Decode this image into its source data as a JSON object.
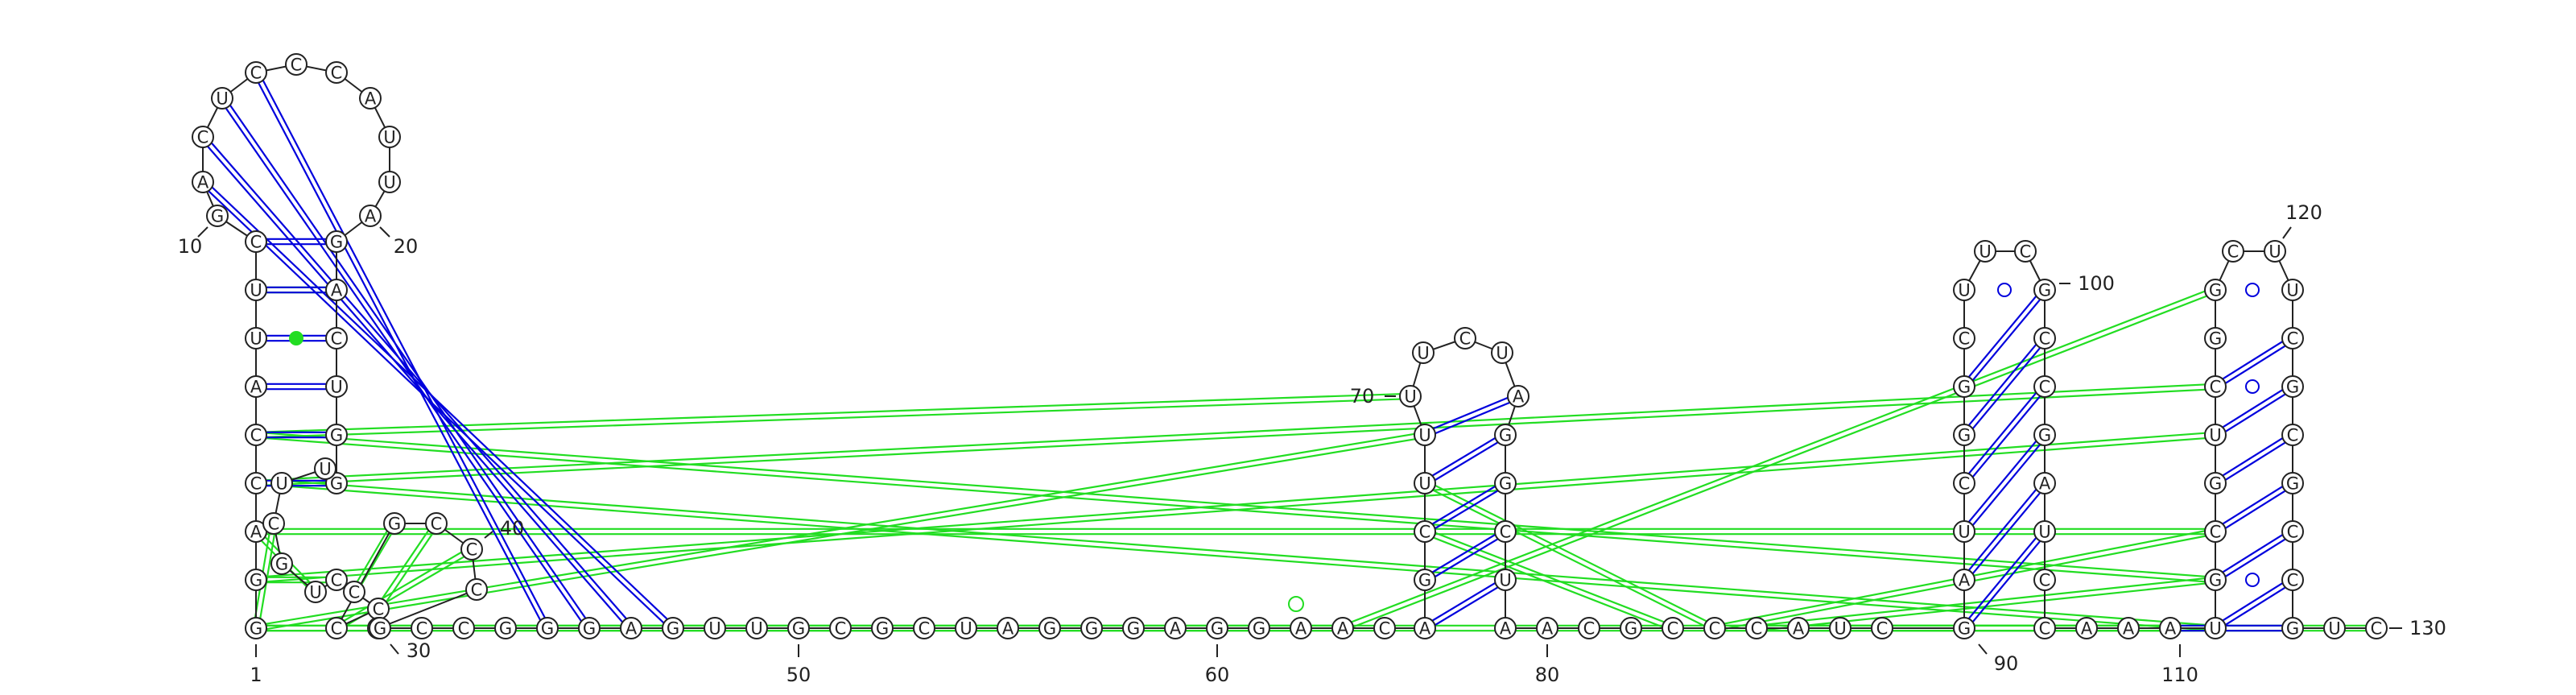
{
  "diagram": {
    "colors": {
      "backbone": "#222222",
      "canonical_pair": "#0000dd",
      "noncanonical_pair": "#22dd22",
      "node_fill": "#ffffff",
      "node_stroke": "#222222"
    },
    "nucleotides": [
      {
        "i": 1,
        "base": "G"
      },
      {
        "i": 2,
        "base": "G"
      },
      {
        "i": 3,
        "base": "A"
      },
      {
        "i": 4,
        "base": "C"
      },
      {
        "i": 5,
        "base": "C"
      },
      {
        "i": 6,
        "base": "A"
      },
      {
        "i": 7,
        "base": "U"
      },
      {
        "i": 8,
        "base": "U"
      },
      {
        "i": 9,
        "base": "C"
      },
      {
        "i": 10,
        "base": "G"
      },
      {
        "i": 11,
        "base": "A"
      },
      {
        "i": 12,
        "base": "C"
      },
      {
        "i": 13,
        "base": "U"
      },
      {
        "i": 14,
        "base": "C"
      },
      {
        "i": 15,
        "base": "C"
      },
      {
        "i": 16,
        "base": "C"
      },
      {
        "i": 17,
        "base": "A"
      },
      {
        "i": 18,
        "base": "U"
      },
      {
        "i": 19,
        "base": "U"
      },
      {
        "i": 20,
        "base": "A"
      },
      {
        "i": 21,
        "base": "G"
      },
      {
        "i": 22,
        "base": "A"
      },
      {
        "i": 23,
        "base": "C"
      },
      {
        "i": 24,
        "base": "U"
      },
      {
        "i": 25,
        "base": "G"
      },
      {
        "i": 26,
        "base": "G"
      },
      {
        "i": 27,
        "base": "U"
      },
      {
        "i": 28,
        "base": "U"
      },
      {
        "i": 29,
        "base": "C"
      },
      {
        "i": 30,
        "base": "G"
      },
      {
        "i": 31,
        "base": "U"
      },
      {
        "i": 32,
        "base": "C"
      },
      {
        "i": 33,
        "base": "C"
      },
      {
        "i": 34,
        "base": "C"
      },
      {
        "i": 35,
        "base": "C"
      },
      {
        "i": 36,
        "base": "G"
      },
      {
        "i": 37,
        "base": "C"
      },
      {
        "i": 38,
        "base": "C"
      },
      {
        "i": 39,
        "base": "C"
      },
      {
        "i": 40,
        "base": "G"
      },
      {
        "i": 41,
        "base": "G"
      },
      {
        "i": 42,
        "base": "C"
      },
      {
        "i": 43,
        "base": "C"
      },
      {
        "i": 44,
        "base": "G"
      },
      {
        "i": 45,
        "base": "G"
      },
      {
        "i": 46,
        "base": "G"
      },
      {
        "i": 47,
        "base": "A"
      },
      {
        "i": 48,
        "base": "G"
      },
      {
        "i": 49,
        "base": "U"
      },
      {
        "i": 50,
        "base": "U"
      },
      {
        "i": 51,
        "base": "G"
      },
      {
        "i": 52,
        "base": "C"
      },
      {
        "i": 53,
        "base": "G"
      },
      {
        "i": 54,
        "base": "C"
      },
      {
        "i": 55,
        "base": "U"
      },
      {
        "i": 56,
        "base": "A"
      },
      {
        "i": 57,
        "base": "G"
      },
      {
        "i": 58,
        "base": "G"
      },
      {
        "i": 59,
        "base": "G"
      },
      {
        "i": 60,
        "base": "A"
      },
      {
        "i": 61,
        "base": "G"
      },
      {
        "i": 62,
        "base": "G"
      },
      {
        "i": 63,
        "base": "A"
      },
      {
        "i": 64,
        "base": "A"
      },
      {
        "i": 65,
        "base": "C"
      },
      {
        "i": 66,
        "base": "A"
      },
      {
        "i": 67,
        "base": "G"
      },
      {
        "i": 68,
        "base": "C"
      },
      {
        "i": 69,
        "base": "U"
      },
      {
        "i": 70,
        "base": "U"
      },
      {
        "i": 71,
        "base": "U"
      },
      {
        "i": 72,
        "base": "U"
      },
      {
        "i": 73,
        "base": "C"
      },
      {
        "i": 74,
        "base": "U"
      },
      {
        "i": 75,
        "base": "A"
      },
      {
        "i": 76,
        "base": "G"
      },
      {
        "i": 77,
        "base": "G"
      },
      {
        "i": 78,
        "base": "C"
      },
      {
        "i": 79,
        "base": "U"
      },
      {
        "i": 80,
        "base": "A"
      },
      {
        "i": 81,
        "base": "A"
      },
      {
        "i": 82,
        "base": "C"
      },
      {
        "i": 83,
        "base": "G"
      },
      {
        "i": 84,
        "base": "C"
      },
      {
        "i": 85,
        "base": "C"
      },
      {
        "i": 86,
        "base": "C"
      },
      {
        "i": 87,
        "base": "A"
      },
      {
        "i": 88,
        "base": "U"
      },
      {
        "i": 89,
        "base": "C"
      },
      {
        "i": 90,
        "base": "G"
      },
      {
        "i": 91,
        "base": "A"
      },
      {
        "i": 92,
        "base": "U"
      },
      {
        "i": 93,
        "base": "C"
      },
      {
        "i": 94,
        "base": "G"
      },
      {
        "i": 95,
        "base": "G"
      },
      {
        "i": 96,
        "base": "C"
      },
      {
        "i": 97,
        "base": "U"
      },
      {
        "i": 98,
        "base": "U"
      },
      {
        "i": 99,
        "base": "C"
      },
      {
        "i": 100,
        "base": "G"
      },
      {
        "i": 101,
        "base": "C"
      },
      {
        "i": 102,
        "base": "C"
      },
      {
        "i": 103,
        "base": "G"
      },
      {
        "i": 104,
        "base": "A"
      },
      {
        "i": 105,
        "base": "U"
      },
      {
        "i": 106,
        "base": "C"
      },
      {
        "i": 107,
        "base": "C"
      },
      {
        "i": 108,
        "base": "A"
      },
      {
        "i": 109,
        "base": "A"
      },
      {
        "i": 110,
        "base": "A"
      },
      {
        "i": 111,
        "base": "U"
      },
      {
        "i": 112,
        "base": "G"
      },
      {
        "i": 113,
        "base": "C"
      },
      {
        "i": 114,
        "base": "G"
      },
      {
        "i": 115,
        "base": "U"
      },
      {
        "i": 116,
        "base": "C"
      },
      {
        "i": 117,
        "base": "G"
      },
      {
        "i": 118,
        "base": "G"
      },
      {
        "i": 119,
        "base": "C"
      },
      {
        "i": 120,
        "base": "U"
      },
      {
        "i": 121,
        "base": "U"
      },
      {
        "i": 122,
        "base": "C"
      },
      {
        "i": 123,
        "base": "G"
      },
      {
        "i": 124,
        "base": "C"
      },
      {
        "i": 125,
        "base": "G"
      },
      {
        "i": 126,
        "base": "C"
      },
      {
        "i": 127,
        "base": "C"
      },
      {
        "i": 128,
        "base": "G"
      },
      {
        "i": 129,
        "base": "U"
      },
      {
        "i": 130,
        "base": "C"
      }
    ],
    "position_labels": [
      {
        "i": 1,
        "text": "1"
      },
      {
        "i": 10,
        "text": "10"
      },
      {
        "i": 20,
        "text": "20"
      },
      {
        "i": 30,
        "text": "30"
      },
      {
        "i": 40,
        "text": "40"
      },
      {
        "i": 50,
        "text": "50"
      },
      {
        "i": 60,
        "text": "60"
      },
      {
        "i": 70,
        "text": "70"
      },
      {
        "i": 80,
        "text": "80"
      },
      {
        "i": 90,
        "text": "90"
      },
      {
        "i": 100,
        "text": "100"
      },
      {
        "i": 110,
        "text": "110"
      },
      {
        "i": 120,
        "text": "120"
      },
      {
        "i": 130,
        "text": "130"
      }
    ],
    "canonical_pairs": [
      [
        4,
        26
      ],
      [
        5,
        25
      ],
      [
        6,
        24
      ],
      [
        7,
        23
      ],
      [
        8,
        22
      ],
      [
        9,
        21
      ],
      [
        14,
        45
      ],
      [
        13,
        46
      ],
      [
        12,
        47
      ],
      [
        11,
        48
      ],
      [
        66,
        79
      ],
      [
        67,
        78
      ],
      [
        68,
        77
      ],
      [
        69,
        76
      ],
      [
        70,
        75
      ],
      [
        90,
        105
      ],
      [
        91,
        104
      ],
      [
        92,
        103
      ],
      [
        93,
        102
      ],
      [
        94,
        101
      ],
      [
        95,
        100
      ],
      [
        110,
        128
      ],
      [
        111,
        127
      ],
      [
        112,
        126
      ],
      [
        113,
        125
      ],
      [
        114,
        124
      ],
      [
        115,
        123
      ],
      [
        116,
        122
      ]
    ],
    "noncanonical_pairs": [
      [
        1,
        29
      ],
      [
        2,
        32
      ],
      [
        3,
        31
      ],
      [
        8,
        22
      ],
      [
        33,
        36
      ],
      [
        34,
        37
      ],
      [
        35,
        38
      ],
      [
        4,
        116
      ],
      [
        2,
        115
      ],
      [
        3,
        113
      ],
      [
        5,
        112
      ],
      [
        28,
        111
      ],
      [
        5,
        71
      ],
      [
        1,
        70
      ],
      [
        68,
        84
      ],
      [
        69,
        85
      ],
      [
        85,
        113
      ],
      [
        86,
        112
      ],
      [
        86,
        111
      ],
      [
        85,
        110
      ],
      [
        1,
        130
      ],
      [
        1,
        64
      ],
      [
        64,
        118
      ]
    ]
  }
}
